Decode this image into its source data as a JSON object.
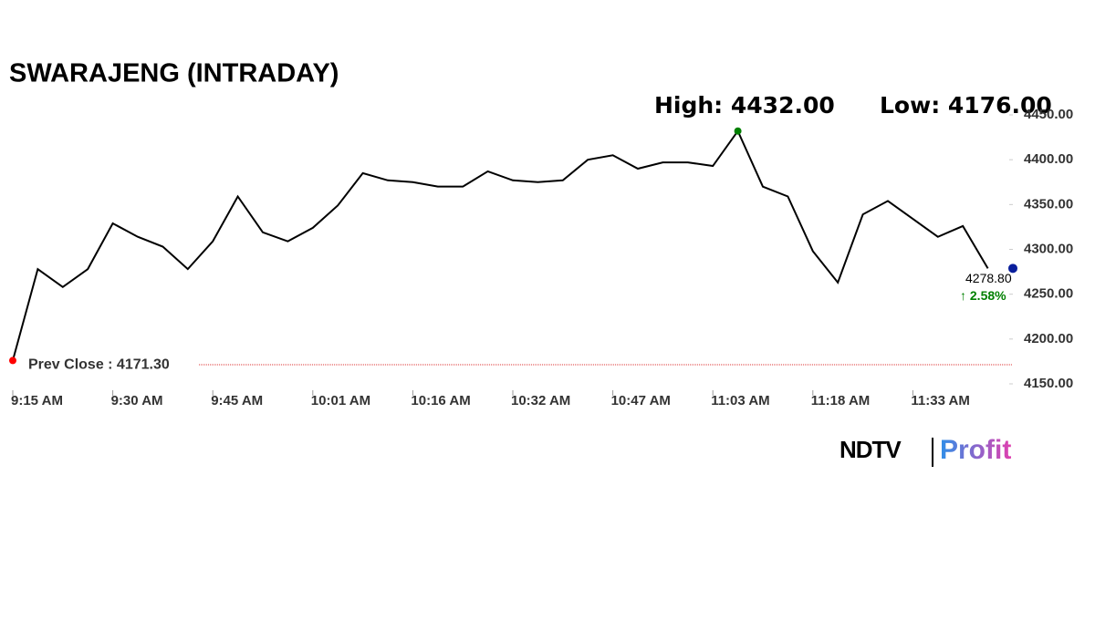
{
  "chart_data": {
    "type": "line",
    "title": "SWARAJENG (INTRADAY)",
    "categories": [
      "9:15 AM",
      null,
      null,
      null,
      "9:30 AM",
      null,
      null,
      null,
      "9:45 AM",
      null,
      null,
      null,
      "10:01 AM",
      null,
      null,
      null,
      "10:16 AM",
      null,
      null,
      null,
      "10:32 AM",
      null,
      null,
      null,
      "10:47 AM",
      null,
      null,
      null,
      "11:03 AM",
      null,
      null,
      null,
      "11:18 AM",
      null,
      null,
      null,
      "11:33 AM",
      null,
      null,
      null,
      null
    ],
    "series": [
      {
        "color": "#000000",
        "values": [
          4176,
          4278,
          4258,
          4278,
          4329,
          4314,
          4303,
          4278,
          4309,
          4359,
          4319,
          4309,
          4324,
          4349,
          4385,
          4377,
          4375,
          4370,
          4370,
          4387,
          4377,
          4375,
          4377,
          4400,
          4405,
          4390,
          4397,
          4397,
          4393,
          4432,
          4370,
          4359,
          4298,
          4263,
          4339,
          4354,
          4334,
          4314,
          4326,
          4278.8,
          null
        ]
      }
    ],
    "ylim": [
      4150,
      4450
    ],
    "yticks": [
      {
        "value": 4150,
        "label": "4150.00"
      },
      {
        "value": 4200,
        "label": "4200.00"
      },
      {
        "value": 4250,
        "label": "4250.00"
      },
      {
        "value": 4300,
        "label": "4300.00"
      },
      {
        "value": 4350,
        "label": "4350.00"
      },
      {
        "value": 4400,
        "label": "4400.00"
      },
      {
        "value": 4450,
        "label": "4450.00"
      }
    ],
    "high": {
      "value": 4432,
      "label": "High: 4432.00"
    },
    "low": {
      "value": 4176,
      "label": "Low: 4176.00"
    },
    "prev_close": {
      "value": 4171.3,
      "label": "Prev Close : 4171.30"
    },
    "last": {
      "value": 4278.8,
      "label": "4278.80"
    },
    "change": "↑ 2.58%",
    "brand": [
      "NDTV",
      "Profit"
    ]
  }
}
